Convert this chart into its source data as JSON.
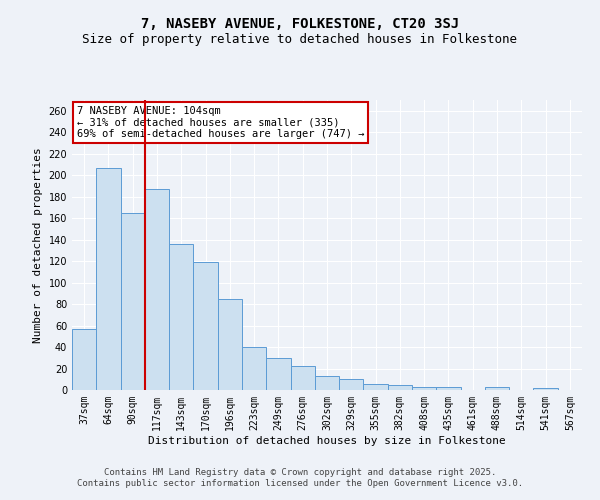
{
  "title": "7, NASEBY AVENUE, FOLKESTONE, CT20 3SJ",
  "subtitle": "Size of property relative to detached houses in Folkestone",
  "xlabel": "Distribution of detached houses by size in Folkestone",
  "ylabel": "Number of detached properties",
  "categories": [
    "37sqm",
    "64sqm",
    "90sqm",
    "117sqm",
    "143sqm",
    "170sqm",
    "196sqm",
    "223sqm",
    "249sqm",
    "276sqm",
    "302sqm",
    "329sqm",
    "355sqm",
    "382sqm",
    "408sqm",
    "435sqm",
    "461sqm",
    "488sqm",
    "514sqm",
    "541sqm",
    "567sqm"
  ],
  "values": [
    57,
    207,
    165,
    187,
    136,
    119,
    85,
    40,
    30,
    22,
    13,
    10,
    6,
    5,
    3,
    3,
    0,
    3,
    0,
    2,
    0
  ],
  "bar_color": "#cce0f0",
  "bar_edge_color": "#5b9bd5",
  "vline_x": 2.5,
  "vline_color": "#cc0000",
  "annotation_text": "7 NASEBY AVENUE: 104sqm\n← 31% of detached houses are smaller (335)\n69% of semi-detached houses are larger (747) →",
  "annotation_box_color": "#ffffff",
  "annotation_box_edge": "#cc0000",
  "ylim": [
    0,
    270
  ],
  "yticks": [
    0,
    20,
    40,
    60,
    80,
    100,
    120,
    140,
    160,
    180,
    200,
    220,
    240,
    260
  ],
  "background_color": "#eef2f8",
  "grid_color": "#ffffff",
  "footer": "Contains HM Land Registry data © Crown copyright and database right 2025.\nContains public sector information licensed under the Open Government Licence v3.0.",
  "title_fontsize": 10,
  "subtitle_fontsize": 9,
  "xlabel_fontsize": 8,
  "ylabel_fontsize": 8,
  "tick_fontsize": 7,
  "annotation_fontsize": 7.5,
  "footer_fontsize": 6.5
}
